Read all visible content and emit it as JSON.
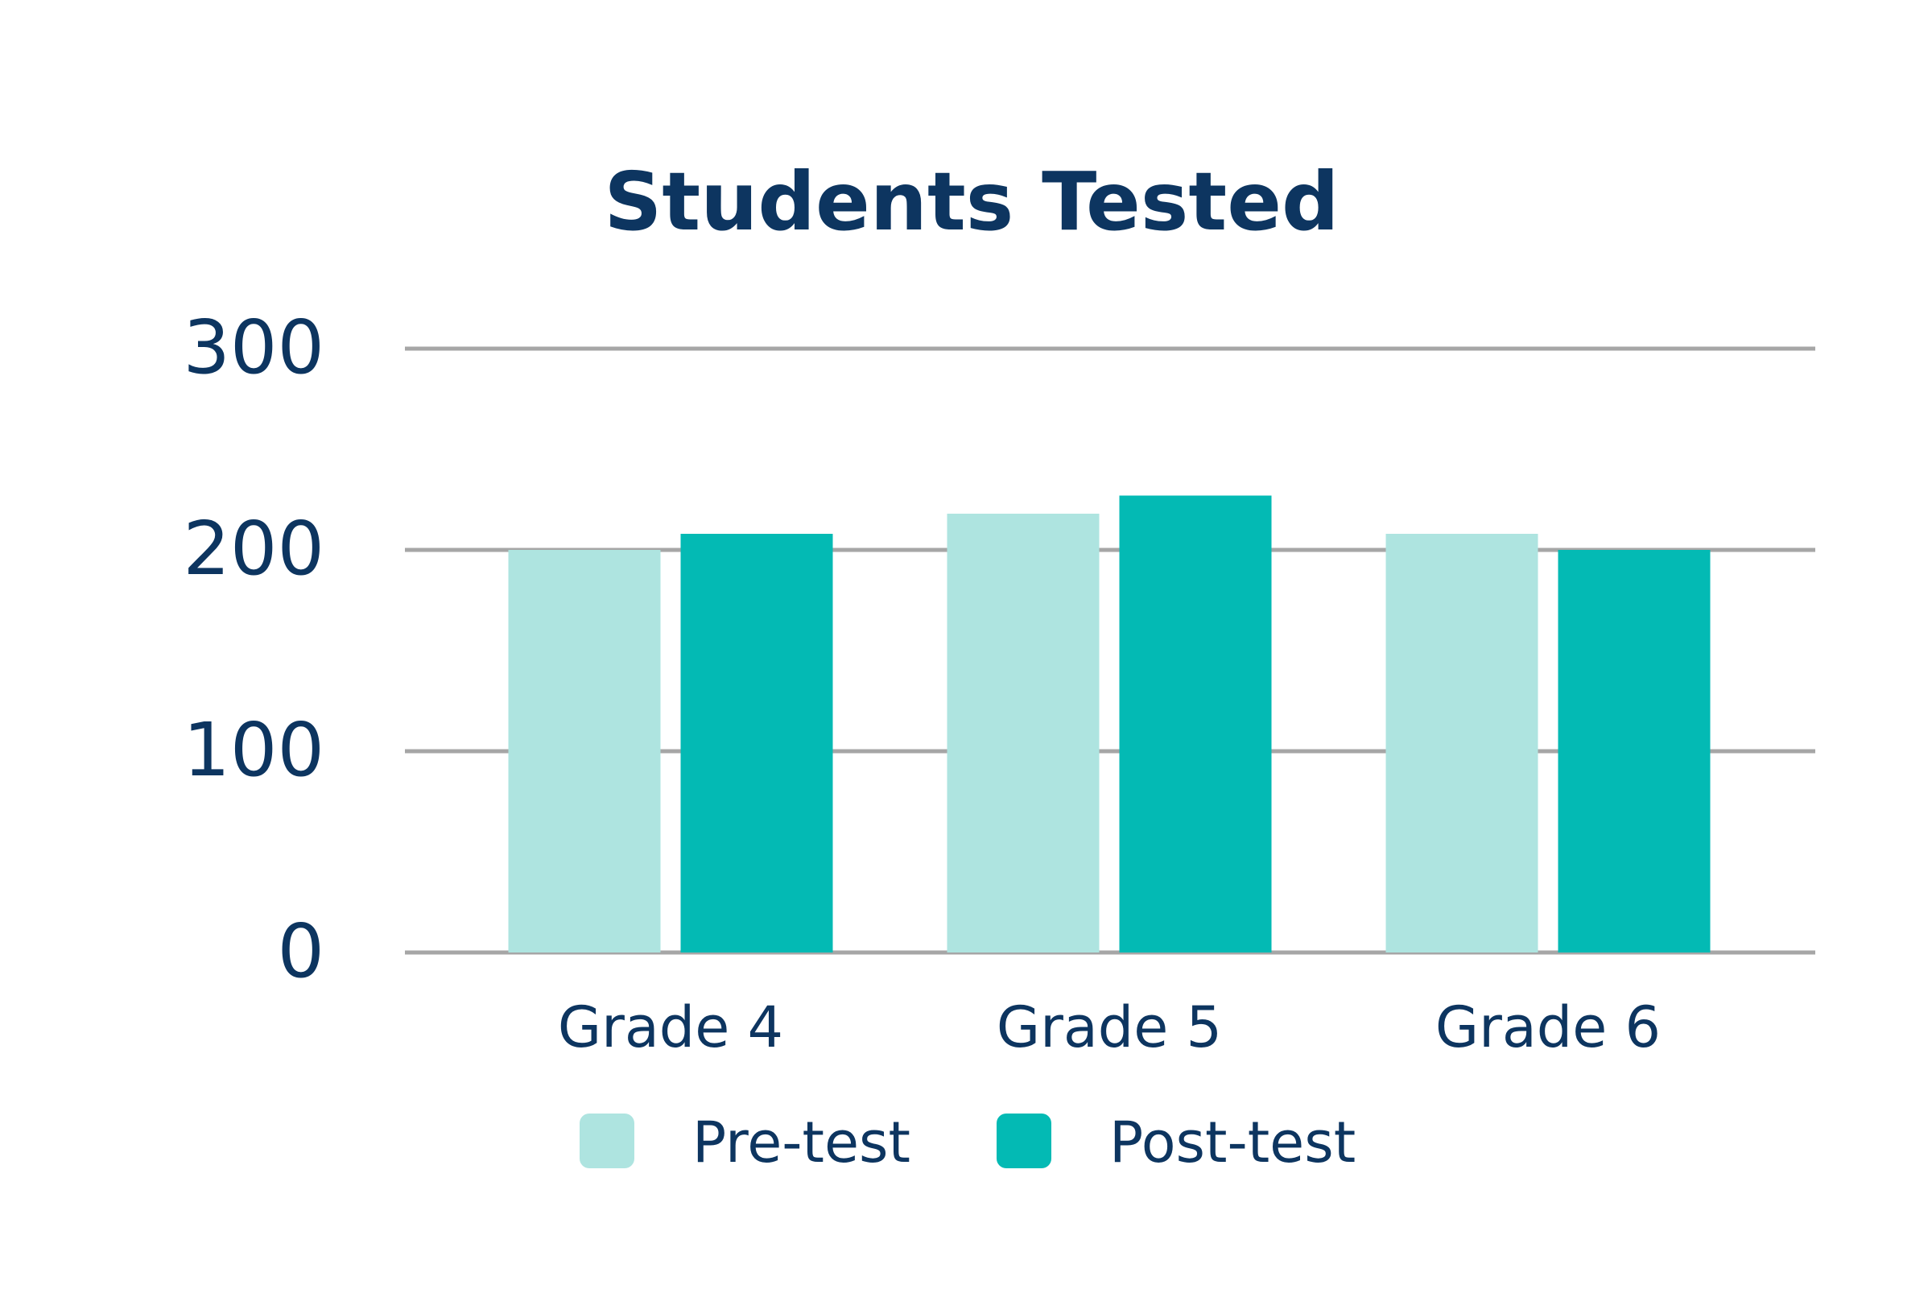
{
  "chart_data": {
    "type": "bar",
    "title": "Students Tested",
    "xlabel": "",
    "ylabel": "",
    "categories": [
      "Grade 4",
      "Grade 5",
      "Grade 6"
    ],
    "series": [
      {
        "name": "Pre-test",
        "values": [
          200,
          218,
          208
        ],
        "color": "#AEE4E0"
      },
      {
        "name": "Post-test",
        "values": [
          208,
          227,
          200
        ],
        "color": "#03BAB4"
      }
    ],
    "ylim": [
      0,
      300
    ],
    "yticks": [
      0,
      100,
      200,
      300
    ],
    "grid": true,
    "legend_position": "bottom-center",
    "colors": {
      "text": "#0D3560",
      "grid": "#A6A6A6"
    }
  }
}
